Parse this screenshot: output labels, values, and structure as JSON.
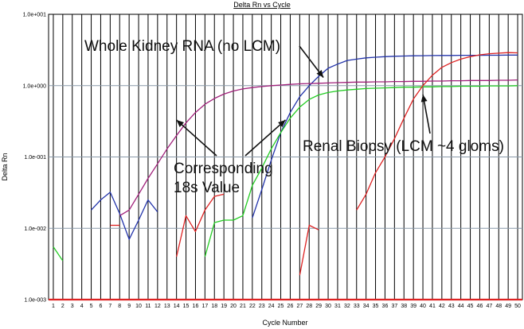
{
  "chart_data": {
    "type": "line",
    "title": "Delta Rn vs Cycle",
    "xlabel": "Cycle Number",
    "ylabel": "Delta Rn",
    "xlim": [
      0.5,
      50.5
    ],
    "x_ticks": [
      1,
      2,
      3,
      4,
      5,
      6,
      7,
      8,
      9,
      10,
      11,
      12,
      13,
      14,
      15,
      16,
      17,
      18,
      19,
      20,
      21,
      22,
      23,
      24,
      25,
      26,
      27,
      28,
      29,
      30,
      31,
      32,
      33,
      34,
      35,
      36,
      37,
      38,
      39,
      40,
      41,
      42,
      43,
      44,
      45,
      46,
      47,
      48,
      49,
      50
    ],
    "y_scale": "log",
    "ylim": [
      0.001,
      10
    ],
    "y_tick_values": [
      0.001,
      0.01,
      0.1,
      1,
      10
    ],
    "y_tick_labels": [
      "1.0e-003",
      "1.0e-002",
      "1.0e-001",
      "1.0e+000",
      "1.0e+001"
    ],
    "grid": true,
    "series": [
      {
        "color": "#2233aa",
        "points": [
          [
            5,
            0.018
          ],
          [
            6,
            0.025
          ],
          [
            7,
            0.032
          ],
          [
            8,
            0.016
          ],
          [
            9,
            0.007
          ],
          [
            10,
            0.013
          ],
          [
            11,
            0.025
          ],
          [
            12,
            0.017
          ]
        ]
      },
      {
        "color": "#2233aa",
        "points": [
          [
            22,
            0.014
          ],
          [
            23,
            0.035
          ],
          [
            24,
            0.09
          ],
          [
            25,
            0.22
          ],
          [
            26,
            0.42
          ],
          [
            27,
            0.7
          ],
          [
            28,
            1.0
          ],
          [
            29,
            1.35
          ],
          [
            30,
            1.75
          ],
          [
            31,
            2.0
          ],
          [
            32,
            2.25
          ],
          [
            33,
            2.35
          ],
          [
            34,
            2.45
          ],
          [
            35,
            2.5
          ],
          [
            36,
            2.55
          ],
          [
            37,
            2.58
          ],
          [
            38,
            2.6
          ],
          [
            39,
            2.62
          ],
          [
            40,
            2.63
          ],
          [
            41,
            2.64
          ],
          [
            42,
            2.65
          ],
          [
            43,
            2.65
          ],
          [
            44,
            2.66
          ],
          [
            45,
            2.66
          ],
          [
            46,
            2.66
          ],
          [
            47,
            2.67
          ],
          [
            48,
            2.67
          ],
          [
            49,
            2.68
          ],
          [
            50,
            2.68
          ]
        ]
      },
      {
        "color": "#a0207a",
        "points": [
          [
            8,
            0.015
          ],
          [
            9,
            0.018
          ],
          [
            10,
            0.03
          ],
          [
            11,
            0.05
          ],
          [
            12,
            0.08
          ],
          [
            13,
            0.13
          ],
          [
            14,
            0.2
          ],
          [
            15,
            0.3
          ],
          [
            16,
            0.42
          ],
          [
            17,
            0.55
          ],
          [
            18,
            0.66
          ],
          [
            19,
            0.76
          ],
          [
            20,
            0.84
          ],
          [
            21,
            0.9
          ],
          [
            22,
            0.94
          ],
          [
            23,
            0.97
          ],
          [
            24,
            1.0
          ],
          [
            25,
            1.02
          ],
          [
            26,
            1.04
          ],
          [
            27,
            1.06
          ],
          [
            28,
            1.07
          ],
          [
            29,
            1.08
          ],
          [
            30,
            1.09
          ],
          [
            31,
            1.1
          ],
          [
            32,
            1.11
          ],
          [
            33,
            1.12
          ],
          [
            34,
            1.12
          ],
          [
            35,
            1.13
          ],
          [
            36,
            1.13
          ],
          [
            37,
            1.14
          ],
          [
            38,
            1.14
          ],
          [
            39,
            1.15
          ],
          [
            40,
            1.15
          ],
          [
            41,
            1.16
          ],
          [
            42,
            1.16
          ],
          [
            43,
            1.17
          ],
          [
            44,
            1.17
          ],
          [
            45,
            1.18
          ],
          [
            46,
            1.18
          ],
          [
            47,
            1.18
          ],
          [
            48,
            1.19
          ],
          [
            49,
            1.19
          ],
          [
            50,
            1.2
          ]
        ]
      },
      {
        "color": "#22cc22",
        "points": [
          [
            17,
            0.004
          ],
          [
            18,
            0.012
          ],
          [
            19,
            0.013
          ],
          [
            20,
            0.013
          ],
          [
            21,
            0.015
          ],
          [
            22,
            0.04
          ],
          [
            23,
            0.07
          ],
          [
            24,
            0.13
          ],
          [
            25,
            0.22
          ],
          [
            26,
            0.35
          ],
          [
            27,
            0.5
          ],
          [
            28,
            0.64
          ],
          [
            29,
            0.74
          ],
          [
            30,
            0.8
          ],
          [
            31,
            0.84
          ],
          [
            32,
            0.87
          ],
          [
            33,
            0.89
          ],
          [
            34,
            0.91
          ],
          [
            35,
            0.92
          ],
          [
            36,
            0.93
          ],
          [
            37,
            0.94
          ],
          [
            38,
            0.95
          ],
          [
            39,
            0.95
          ],
          [
            40,
            0.96
          ],
          [
            41,
            0.96
          ],
          [
            42,
            0.97
          ],
          [
            43,
            0.97
          ],
          [
            44,
            0.98
          ],
          [
            45,
            0.98
          ],
          [
            46,
            0.98
          ],
          [
            47,
            0.99
          ],
          [
            48,
            0.99
          ],
          [
            49,
            0.99
          ],
          [
            50,
            1.0
          ]
        ]
      },
      {
        "color": "#22cc22",
        "points": [
          [
            1,
            0.0055
          ],
          [
            2,
            0.0035
          ]
        ]
      },
      {
        "color": "#dd2222",
        "points": [
          [
            7,
            0.011
          ],
          [
            8,
            0.011
          ]
        ]
      },
      {
        "color": "#dd2222",
        "points": [
          [
            14,
            0.004
          ],
          [
            15,
            0.015
          ],
          [
            16,
            0.009
          ],
          [
            17,
            0.018
          ],
          [
            18,
            0.028
          ],
          [
            19,
            0.03
          ]
        ]
      },
      {
        "color": "#dd2222",
        "points": [
          [
            27,
            0.0022
          ],
          [
            28,
            0.011
          ],
          [
            29,
            0.0095
          ]
        ]
      },
      {
        "color": "#dd2222",
        "points": [
          [
            33,
            0.018
          ],
          [
            34,
            0.03
          ],
          [
            35,
            0.06
          ],
          [
            36,
            0.1
          ],
          [
            37,
            0.18
          ],
          [
            38,
            0.35
          ],
          [
            39,
            0.65
          ],
          [
            40,
            1.0
          ],
          [
            41,
            1.4
          ],
          [
            42,
            1.8
          ],
          [
            43,
            2.1
          ],
          [
            44,
            2.35
          ],
          [
            45,
            2.55
          ],
          [
            46,
            2.7
          ],
          [
            47,
            2.8
          ],
          [
            48,
            2.85
          ],
          [
            49,
            2.9
          ],
          [
            50,
            2.88
          ]
        ]
      }
    ],
    "annotations": [
      {
        "text": "Whole Kidney RNA (no LCM)",
        "arrow_to": [
          29.5,
          1.3
        ]
      },
      {
        "text": "Corresponding",
        "arrow_to": [
          14,
          0.33
        ]
      },
      {
        "text": "18s Value",
        "arrow_to": [
          25.5,
          0.33
        ]
      },
      {
        "text": "Renal Biopsy (LCM ~4 gloms)",
        "arrow_to": [
          40,
          0.75
        ]
      }
    ]
  }
}
